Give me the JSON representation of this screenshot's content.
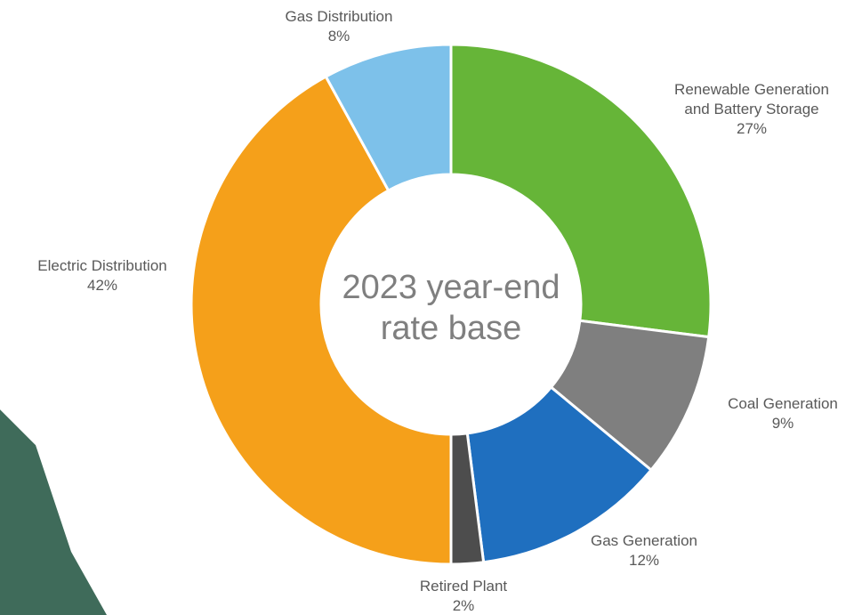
{
  "chart_data": {
    "type": "donut",
    "center_text": "2023 year-end rate base",
    "categories": [
      "Renewable Generation and Battery Storage",
      "Coal Generation",
      "Gas Generation",
      "Retired Plant",
      "Electric Distribution",
      "Gas Distribution"
    ],
    "values": [
      27,
      9,
      12,
      2,
      42,
      8
    ],
    "value_labels": [
      "27%",
      "9%",
      "12%",
      "2%",
      "42%",
      "8%"
    ],
    "colors": [
      "#66b538",
      "#7f7f7f",
      "#1f6fbf",
      "#4d4d4d",
      "#f5a01a",
      "#7dc1ea"
    ]
  }
}
